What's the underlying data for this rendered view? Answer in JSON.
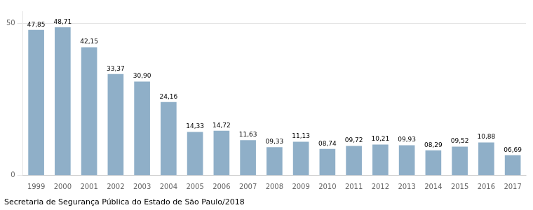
{
  "chart_data": {
    "type": "bar",
    "categories": [
      "1999",
      "2000",
      "2001",
      "2002",
      "2003",
      "2004",
      "2005",
      "2006",
      "2007",
      "2008",
      "2009",
      "2010",
      "2011",
      "2012",
      "2013",
      "2014",
      "2015",
      "2016",
      "2017"
    ],
    "values": [
      47.85,
      48.71,
      42.15,
      33.37,
      30.9,
      24.16,
      14.33,
      14.72,
      11.63,
      9.33,
      11.13,
      8.74,
      9.72,
      10.21,
      9.93,
      8.29,
      9.52,
      10.88,
      6.69
    ],
    "value_labels": [
      "47,85",
      "48,71",
      "42,15",
      "33,37",
      "30,90",
      "24,16",
      "14,33",
      "14,72",
      "11,63",
      "09,33",
      "11,13",
      "08,74",
      "09,72",
      "10,21",
      "09,93",
      "08,29",
      "09,52",
      "10,88",
      "06,69"
    ],
    "data_labels": true,
    "color": "#8FAFC8",
    "ylim": [
      0,
      54
    ],
    "yticks": [
      0,
      50
    ],
    "grid": true,
    "caption": "Secretaria de Segurança Pública do Estado de São Paulo/2018"
  }
}
